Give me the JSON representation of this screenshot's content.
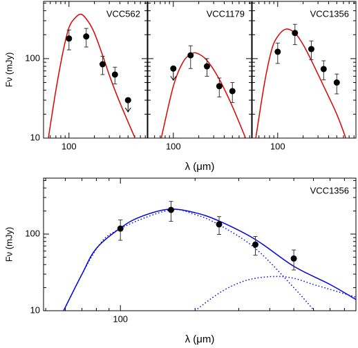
{
  "chart_data": [
    {
      "type": "scatter",
      "title": "VCC562",
      "y_label": "Fν (mJy)",
      "log_x": true,
      "log_y": true,
      "xlim": [
        50,
        843
      ],
      "ylim": [
        10,
        525
      ],
      "xticks": [
        100
      ],
      "xminorticks": [
        60,
        70,
        80,
        90,
        200,
        300,
        400,
        500,
        600,
        700,
        800
      ],
      "yticks": [
        10,
        100
      ],
      "yminorticks": [
        20,
        30,
        40,
        50,
        60,
        70,
        80,
        90,
        200,
        300,
        400,
        500
      ],
      "ytick_labels": true,
      "points": {
        "color": "#000000",
        "x": [
          100,
          160,
          250,
          350,
          500
        ],
        "values": [
          179,
          190,
          85,
          63,
          30
        ],
        "errors": [
          50,
          50,
          22,
          15,
          null
        ],
        "upper_limits": [
          false,
          false,
          false,
          false,
          true
        ]
      },
      "models": [
        {
          "color": "#dd0000",
          "dash": "solid",
          "x": [
            57,
            70,
            85,
            100,
            120,
            141,
            170,
            200,
            250,
            300,
            350,
            400,
            500,
            605
          ],
          "values": [
            10,
            40,
            122,
            246,
            330,
            360,
            290,
            210,
            110,
            62,
            40,
            28,
            16,
            10
          ]
        }
      ]
    },
    {
      "type": "scatter",
      "title": "VCC1179",
      "x_label": "λ (μm)",
      "log_x": true,
      "log_y": true,
      "xlim": [
        50,
        843
      ],
      "ylim": [
        10,
        525
      ],
      "xticks": [
        100
      ],
      "xminorticks": [
        60,
        70,
        80,
        90,
        200,
        300,
        400,
        500,
        600,
        700,
        800
      ],
      "yticks": [
        10,
        100
      ],
      "yminorticks": [
        20,
        30,
        40,
        50,
        60,
        70,
        80,
        90,
        200,
        300,
        400,
        500
      ],
      "ytick_labels": false,
      "points": {
        "color": "#000000",
        "x": [
          100,
          160,
          250,
          350,
          500
        ],
        "values": [
          75,
          110,
          80,
          45,
          39
        ],
        "errors": [
          null,
          35,
          20,
          12,
          11
        ],
        "upper_limits": [
          true,
          false,
          false,
          false,
          false
        ]
      },
      "models": [
        {
          "color": "#dd0000",
          "dash": "solid",
          "x": [
            72,
            100,
            130,
            160,
            190,
            250,
            350,
            500,
            716
          ],
          "values": [
            10,
            45,
            90,
            113,
            117,
            95,
            55,
            25,
            10
          ]
        }
      ]
    },
    {
      "type": "scatter",
      "title": "VCC1356",
      "log_x": true,
      "log_y": true,
      "xlim": [
        50,
        843
      ],
      "ylim": [
        10,
        525
      ],
      "xticks": [
        100
      ],
      "xminorticks": [
        60,
        70,
        80,
        90,
        200,
        300,
        400,
        500,
        600,
        700,
        800
      ],
      "yticks": [
        10,
        100
      ],
      "yminorticks": [
        20,
        30,
        40,
        50,
        60,
        70,
        80,
        90,
        200,
        300,
        400,
        500
      ],
      "ytick_labels": false,
      "points": {
        "color": "#000000",
        "x": [
          100,
          160,
          250,
          350,
          500
        ],
        "values": [
          122,
          210,
          132,
          74,
          50
        ],
        "errors": [
          35,
          60,
          35,
          20,
          14
        ],
        "upper_limits": [
          false,
          false,
          false,
          false,
          false
        ]
      },
      "models": [
        {
          "color": "#dd0000",
          "dash": "solid",
          "x": [
            55,
            70,
            85,
            100,
            125,
            160,
            200,
            250,
            350,
            500,
            640
          ],
          "values": [
            10,
            50,
            130,
            190,
            235,
            210,
            150,
            95,
            45,
            20,
            10
          ]
        }
      ]
    },
    {
      "type": "scatter",
      "title": "VCC1356",
      "x_label": "λ (μm)",
      "y_label": "Fν (mJy)",
      "log_x": true,
      "log_y": true,
      "xlim": [
        49,
        890
      ],
      "ylim": [
        10,
        537
      ],
      "xticks": [
        100
      ],
      "xminorticks": [
        50,
        60,
        70,
        80,
        90,
        200,
        300,
        400,
        500,
        600,
        700,
        800
      ],
      "yticks": [
        10,
        100
      ],
      "yminorticks": [
        20,
        30,
        40,
        50,
        60,
        70,
        80,
        90,
        200,
        300,
        400,
        500
      ],
      "ytick_labels": true,
      "points": {
        "color": "#000000",
        "x": [
          100,
          160,
          250,
          350,
          500
        ],
        "values": [
          118,
          207,
          134,
          73,
          48
        ],
        "errors": [
          35,
          60,
          35,
          20,
          14
        ],
        "upper_limits": [
          false,
          false,
          false,
          false,
          false
        ]
      },
      "models": [
        {
          "color": "#0000dd",
          "dash": "solid",
          "x": [
            59,
            70,
            80,
            100,
            120,
            157,
            200,
            250,
            350,
            500,
            700,
            890
          ],
          "values": [
            10,
            30,
            65,
            120,
            167,
            211,
            190,
            148,
            85,
            38,
            22,
            14
          ]
        },
        {
          "color": "#0000dd",
          "dash": "dotted",
          "x": [
            59,
            80,
            100,
            157,
            200,
            250,
            350,
            500,
            605
          ],
          "values": [
            10,
            64,
            118,
            205,
            180,
            132,
            65,
            20,
            10
          ]
        },
        {
          "color": "#0000dd",
          "dash": "dotted",
          "x": [
            200,
            250,
            300,
            350,
            425,
            500,
            600,
            700,
            890
          ],
          "values": [
            10,
            17,
            23,
            26.5,
            28,
            26.5,
            22,
            19,
            15
          ]
        }
      ]
    }
  ]
}
